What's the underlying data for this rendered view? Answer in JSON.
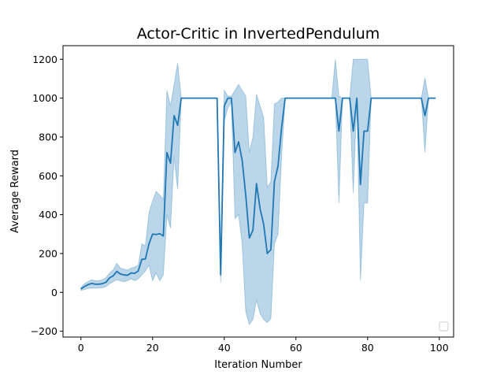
{
  "chart_data": {
    "type": "line",
    "title": "Actor-Critic in InvertedPendulum",
    "xlabel": "Iteration Number",
    "ylabel": "Average Reward",
    "xlim": [
      -5,
      104
    ],
    "ylim": [
      -230,
      1270
    ],
    "xticks": [
      0,
      20,
      40,
      60,
      80,
      100
    ],
    "yticks": [
      -200,
      0,
      200,
      400,
      600,
      800,
      1000,
      1200
    ],
    "grid": false,
    "legend": "bottom-right (empty)",
    "line_color": "#1f77b4",
    "band_color": "#1f77b4",
    "series": [
      {
        "x": [
          0,
          1,
          2,
          3,
          4,
          5,
          6,
          7,
          8,
          9,
          10,
          11,
          12,
          13,
          14,
          15,
          16,
          17,
          18,
          19,
          20,
          21,
          22,
          23,
          24,
          25,
          26,
          27,
          28,
          29,
          30,
          31,
          32,
          33,
          34,
          35,
          36,
          37,
          38,
          39,
          40,
          41,
          42,
          43,
          44,
          45,
          46,
          47,
          48,
          49,
          50,
          51,
          52,
          53,
          54,
          55,
          56,
          57,
          58,
          59,
          60,
          61,
          62,
          63,
          64,
          65,
          66,
          67,
          68,
          69,
          70,
          71,
          72,
          73,
          74,
          75,
          76,
          77,
          78,
          79,
          80,
          81,
          82,
          83,
          84,
          85,
          86,
          87,
          88,
          89,
          90,
          91,
          92,
          93,
          94,
          95,
          96,
          97,
          98,
          99
        ],
        "y": [
          18,
          30,
          40,
          46,
          42,
          42,
          45,
          52,
          75,
          85,
          108,
          95,
          90,
          88,
          100,
          98,
          110,
          170,
          172,
          250,
          300,
          298,
          302,
          290,
          720,
          665,
          910,
          860,
          1000,
          1000,
          1000,
          1000,
          1000,
          1000,
          1000,
          1000,
          1000,
          1000,
          1000,
          90,
          960,
          1000,
          1000,
          720,
          775,
          680,
          500,
          280,
          320,
          560,
          430,
          350,
          200,
          220,
          570,
          650,
          850,
          1000,
          1000,
          1000,
          1000,
          1000,
          1000,
          1000,
          1000,
          1000,
          1000,
          1000,
          1000,
          1000,
          1000,
          1000,
          830,
          1000,
          1000,
          1000,
          830,
          1000,
          555,
          830,
          830,
          1000,
          1000,
          1000,
          1000,
          1000,
          1000,
          1000,
          1000,
          1000,
          1000,
          1000,
          1000,
          1000,
          1000,
          1000,
          910,
          1000,
          1000,
          1000
        ],
        "y_low": [
          10,
          15,
          20,
          22,
          22,
          22,
          24,
          30,
          45,
          55,
          65,
          60,
          55,
          60,
          70,
          60,
          70,
          90,
          110,
          140,
          60,
          100,
          60,
          90,
          400,
          330,
          700,
          530,
          1000,
          1000,
          1000,
          1000,
          1000,
          1000,
          1000,
          1000,
          1000,
          1000,
          1000,
          50,
          880,
          950,
          980,
          380,
          400,
          250,
          -100,
          -165,
          -140,
          -40,
          -110,
          -140,
          -155,
          -135,
          250,
          300,
          700,
          1000,
          1000,
          1000,
          1000,
          1000,
          1000,
          1000,
          1000,
          1000,
          1000,
          1000,
          1000,
          1000,
          1000,
          1000,
          460,
          1000,
          1000,
          1000,
          510,
          1000,
          60,
          460,
          460,
          1000,
          1000,
          1000,
          1000,
          1000,
          1000,
          1000,
          1000,
          1000,
          1000,
          1000,
          1000,
          1000,
          1000,
          1000,
          720,
          1000,
          1000,
          1000
        ],
        "y_high": [
          25,
          45,
          55,
          65,
          60,
          60,
          65,
          75,
          100,
          115,
          150,
          125,
          120,
          115,
          125,
          130,
          140,
          250,
          240,
          410,
          470,
          520,
          500,
          480,
          1040,
          960,
          1070,
          1180,
          1000,
          1000,
          1000,
          1000,
          1000,
          1000,
          1000,
          1000,
          1000,
          1000,
          1000,
          130,
          1040,
          1010,
          1010,
          1040,
          1070,
          1040,
          1010,
          720,
          800,
          1020,
          960,
          900,
          540,
          570,
          970,
          980,
          1000,
          1000,
          1000,
          1000,
          1000,
          1000,
          1000,
          1000,
          1000,
          1000,
          1000,
          1000,
          1000,
          1000,
          1000,
          1200,
          1010,
          1000,
          1000,
          1000,
          1200,
          1200,
          1200,
          1200,
          1200,
          1000,
          1000,
          1000,
          1000,
          1000,
          1000,
          1000,
          1000,
          1000,
          1000,
          1000,
          1000,
          1000,
          1000,
          1000,
          1105,
          1000,
          1000,
          1000
        ]
      }
    ]
  }
}
